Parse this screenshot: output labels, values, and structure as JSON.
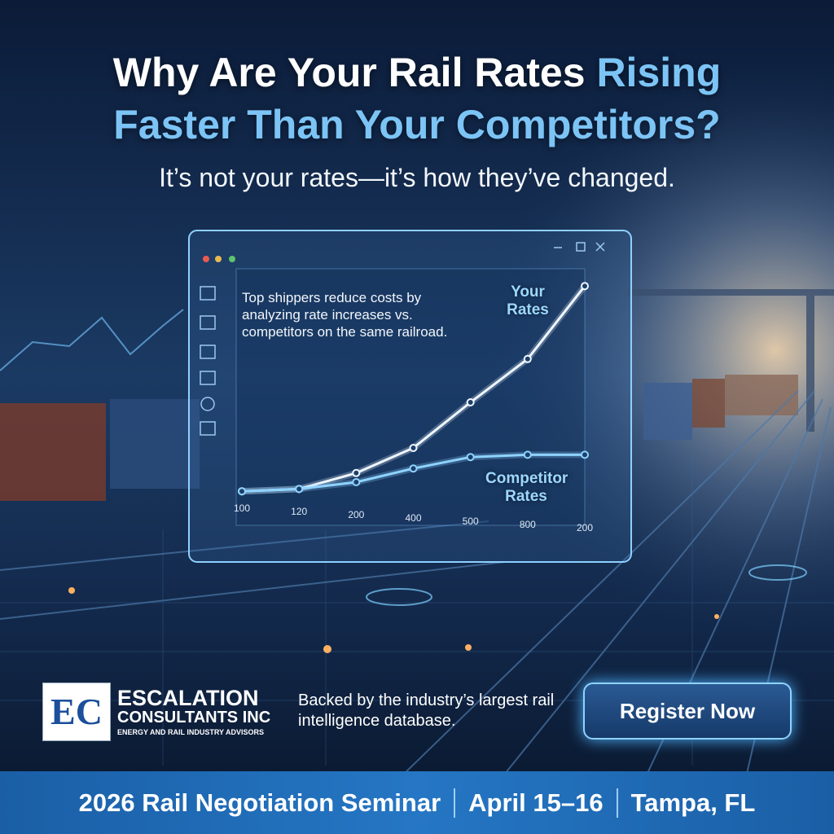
{
  "headline": {
    "part1": "Why Are Your Rail Rates",
    "highlight": "Rising",
    "line2": "Faster Than Your Competitors?"
  },
  "subheadline": "It’s not your rates—it’s how they’ve changed.",
  "chart_data": {
    "type": "line",
    "note": "Top shippers reduce costs by analyzing rate increases vs. competitors on the same railroad.",
    "categories": [
      "100",
      "120",
      "200",
      "400",
      "500",
      "800",
      "200"
    ],
    "series": [
      {
        "name": "Your Rates",
        "color": "#eef6ff",
        "values": [
          6,
          7,
          14,
          25,
          45,
          64,
          96
        ]
      },
      {
        "name": "Competitor Rates",
        "color": "#8fd3ff",
        "values": [
          6,
          7,
          10,
          16,
          21,
          22,
          22
        ]
      }
    ],
    "ylim": [
      0,
      100
    ]
  },
  "logo": {
    "initials": "EC",
    "name_line1": "ESCALATION",
    "name_line2": "CONSULTANTS INC",
    "tagline": "ENERGY AND RAIL INDUSTRY ADVISORS"
  },
  "backing_text": "Backed by the industry’s largest rail intelligence database.",
  "cta": {
    "label": "Register Now"
  },
  "footer": {
    "items": [
      "2026 Rail Negotiation Seminar",
      "April 15–16",
      "Tampa, FL"
    ]
  }
}
